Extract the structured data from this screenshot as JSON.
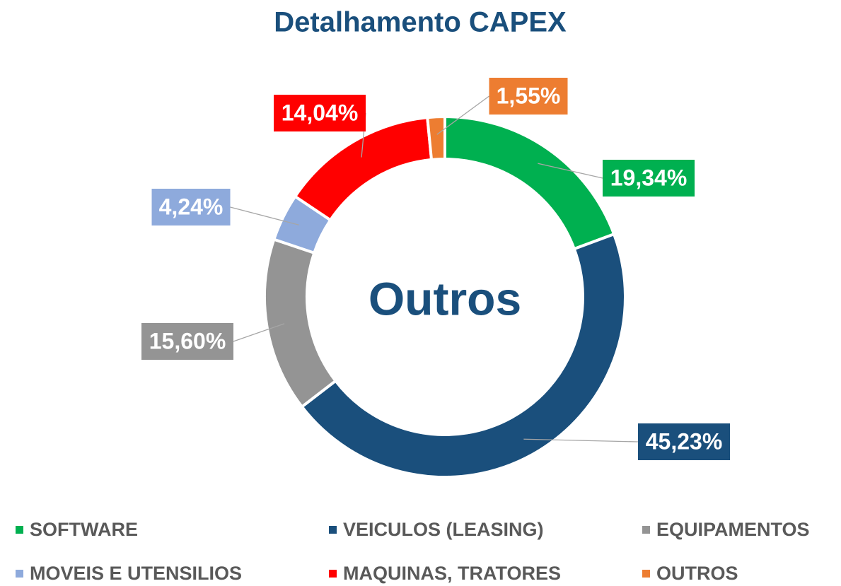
{
  "chart_data": {
    "type": "donut",
    "title": "Detalhamento CAPEX",
    "center_label": "Outros",
    "categories": [
      "SOFTWARE",
      "VEICULOS (LEASING)",
      "EQUIPAMENTOS",
      "MOVEIS E UTENSILIOS",
      "MAQUINAS, TRATORES",
      "OUTROS"
    ],
    "values": [
      19.34,
      45.23,
      15.6,
      4.24,
      14.04,
      1.55
    ],
    "value_labels": [
      "19,34%",
      "45,23%",
      "15,60%",
      "4,24%",
      "14,04%",
      "1,55%"
    ],
    "colors": [
      "#00b050",
      "#1a4f7c",
      "#949494",
      "#8eaadc",
      "#ff0000",
      "#ed7d31"
    ],
    "legend": "bottom"
  }
}
